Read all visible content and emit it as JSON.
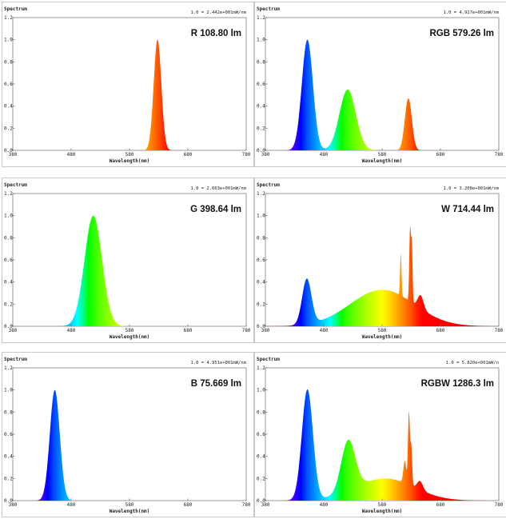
{
  "chart_data": [
    {
      "type": "area",
      "title": "R 108.80 lm",
      "label_prefix": "R",
      "lumens": "108.80 lm",
      "ytitle": "Spectrum",
      "xlabel": "Wavelength(nm)",
      "scale_note": "1.0 = 2.442e+001mW/nm",
      "xlim": [
        380,
        780
      ],
      "ylim": [
        0,
        1.2
      ],
      "x_ticks": [
        "380",
        "480",
        "580",
        "680",
        "780"
      ],
      "y_ticks": [
        "0.0",
        "0.2",
        "0.4",
        "0.6",
        "0.8",
        "1.0",
        "1.2"
      ],
      "peaks": [
        {
          "center": 628,
          "height": 1.0,
          "sigma": 6.5
        }
      ]
    },
    {
      "type": "area",
      "title": "RGB 579.26 lm",
      "label_prefix": "RGB",
      "lumens": "579.26 lm",
      "ytitle": "Spectrum",
      "xlabel": "Wavelength(nm)",
      "scale_note": "1.0 = 4.917e+001mW/nm",
      "xlim": [
        380,
        780
      ],
      "ylim": [
        0,
        1.2
      ],
      "x_ticks": [
        "380",
        "480",
        "580",
        "680",
        "780"
      ],
      "y_ticks": [
        "0.0",
        "0.2",
        "0.4",
        "0.6",
        "0.8",
        "1.0",
        "1.2"
      ],
      "peaks": [
        {
          "center": 452,
          "height": 1.0,
          "sigma": 9.5
        },
        {
          "center": 521,
          "height": 0.55,
          "sigma": 14
        },
        {
          "center": 625,
          "height": 0.47,
          "sigma": 6
        }
      ]
    },
    {
      "type": "area",
      "title": "G 398.64 lm",
      "label_prefix": "G",
      "lumens": "398.64 lm",
      "ytitle": "Spectrum",
      "xlabel": "Wavelength(nm)",
      "scale_note": "1.0 = 2.663e+001mW/nm",
      "xlim": [
        380,
        780
      ],
      "ylim": [
        0,
        1.2
      ],
      "x_ticks": [
        "380",
        "480",
        "580",
        "680",
        "780"
      ],
      "y_ticks": [
        "0.0",
        "0.2",
        "0.4",
        "0.6",
        "0.8",
        "1.0",
        "1.2"
      ],
      "peaks": [
        {
          "center": 518,
          "height": 1.0,
          "sigma": 15
        }
      ]
    },
    {
      "type": "area",
      "title": "W 714.44 lm",
      "label_prefix": "W",
      "lumens": "714.44 lm",
      "ytitle": "Spectrum",
      "xlabel": "Wavelength(nm)",
      "scale_note": "1.0 = 3.208e+001mW/nm",
      "xlim": [
        380,
        780
      ],
      "ylim": [
        0,
        1.2
      ],
      "x_ticks": [
        "380",
        "480",
        "580",
        "680",
        "780"
      ],
      "y_ticks": [
        "0.0",
        "0.2",
        "0.4",
        "0.6",
        "0.8",
        "1.0",
        "1.2"
      ],
      "peaks": [
        {
          "center": 451,
          "height": 0.41,
          "sigma": 8
        },
        {
          "center": 580,
          "height": 0.33,
          "sigma": 55
        },
        {
          "center": 612,
          "height": 0.38,
          "sigma": 1.2
        },
        {
          "center": 628,
          "height": 0.66,
          "sigma": 1.4
        },
        {
          "center": 631,
          "height": 0.5,
          "sigma": 1.2
        },
        {
          "center": 646,
          "height": 0.12,
          "sigma": 5
        }
      ]
    },
    {
      "type": "area",
      "title": "B 75.669 lm",
      "label_prefix": "B",
      "lumens": "75.669 lm",
      "ytitle": "Spectrum",
      "xlabel": "Wavelength(nm)",
      "scale_note": "1.0 = 4.951e+001mW/nm",
      "xlim": [
        380,
        780
      ],
      "ylim": [
        0,
        1.2
      ],
      "x_ticks": [
        "380",
        "480",
        "580",
        "680",
        "780"
      ],
      "y_ticks": [
        "0.0",
        "0.2",
        "0.4",
        "0.6",
        "0.8",
        "1.0",
        "1.2"
      ],
      "peaks": [
        {
          "center": 452,
          "height": 1.0,
          "sigma": 8.5
        }
      ]
    },
    {
      "type": "area",
      "title": "RGBW 1286.3 lm",
      "label_prefix": "RGBW",
      "lumens": "1286.3 lm",
      "ytitle": "Spectrum",
      "xlabel": "Wavelength(nm)",
      "scale_note": "1.0 = 5.820e+001mW/n",
      "xlim": [
        380,
        780
      ],
      "ylim": [
        0,
        1.2
      ],
      "x_ticks": [
        "380",
        "480",
        "580",
        "680",
        "780"
      ],
      "y_ticks": [
        "0.0",
        "0.2",
        "0.4",
        "0.6",
        "0.8",
        "1.0",
        "1.2"
      ],
      "peaks": [
        {
          "center": 452,
          "height": 1.0,
          "sigma": 9.5
        },
        {
          "center": 522,
          "height": 0.46,
          "sigma": 12
        },
        {
          "center": 585,
          "height": 0.2,
          "sigma": 50
        },
        {
          "center": 619,
          "height": 0.2,
          "sigma": 2.5
        },
        {
          "center": 626,
          "height": 0.65,
          "sigma": 1.6
        },
        {
          "center": 630,
          "height": 0.35,
          "sigma": 1.5
        },
        {
          "center": 645,
          "height": 0.08,
          "sigma": 5
        }
      ]
    }
  ]
}
